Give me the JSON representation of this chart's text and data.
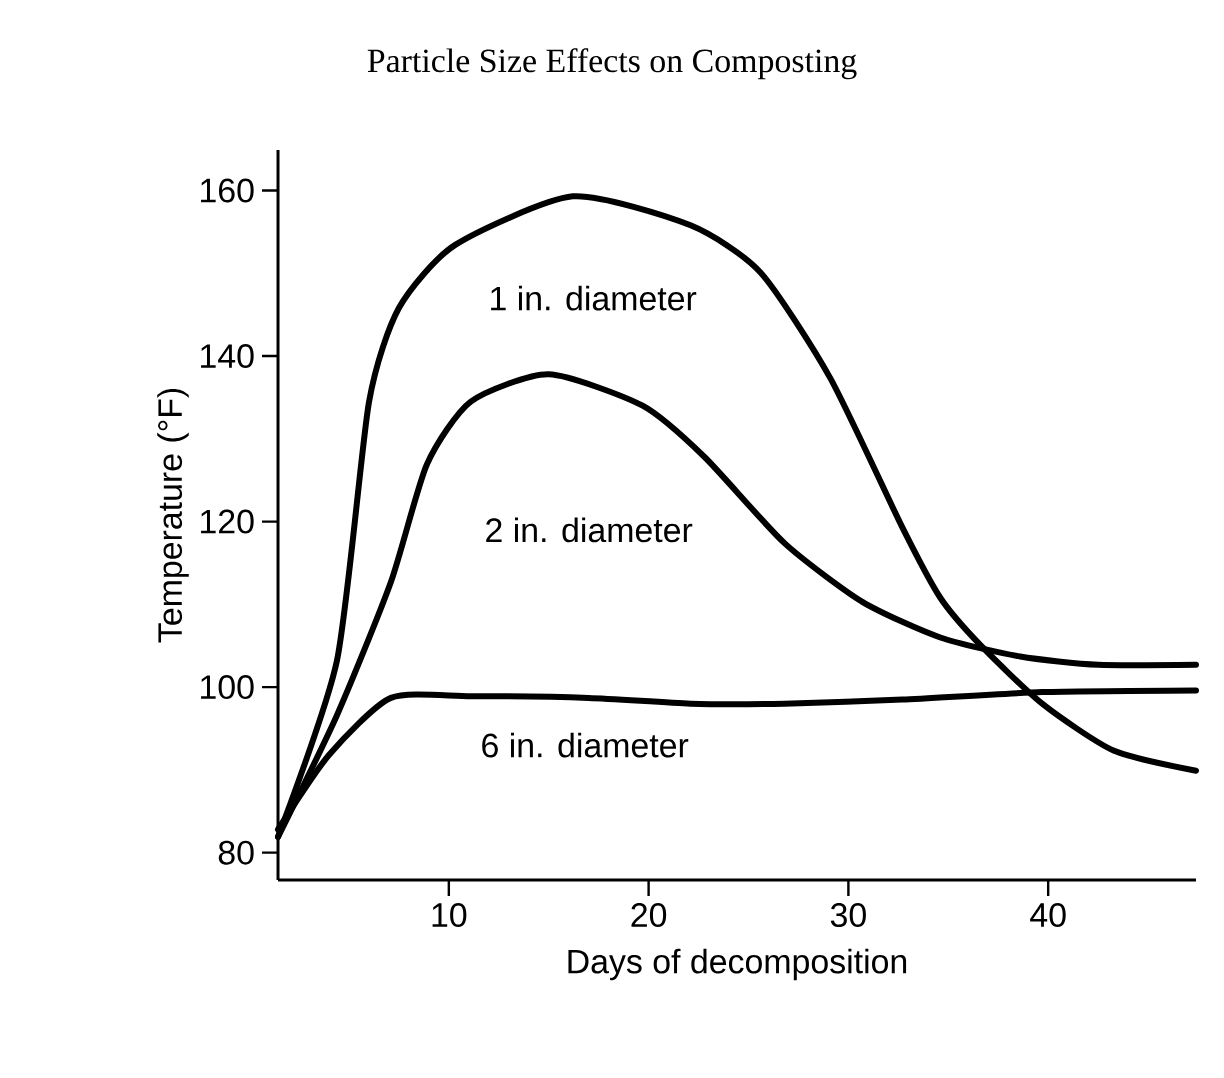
{
  "chart_data": {
    "type": "line",
    "title": "Particle Size Effects on Composting",
    "xlabel": "Days of decomposition",
    "ylabel": "Temperature (°F)",
    "xlim": [
      1.45,
      47.4
    ],
    "ylim": [
      76.7,
      164.9
    ],
    "xticks": [
      10,
      20,
      30,
      40
    ],
    "yticks": [
      80,
      100,
      120,
      140,
      160
    ],
    "grid": false,
    "marker": "none",
    "line_style": "solid",
    "series": [
      {
        "name": "1 in. diameter",
        "color": "#000000",
        "x": [
          1.45,
          4.4,
          6.0,
          7.5,
          10.3,
          16.2,
          22.1,
          25.6,
          29.1,
          32.7,
          34.6,
          36.6,
          39.7,
          43.3,
          47.4
        ],
        "values": [
          81.9,
          103.2,
          134.4,
          145.8,
          153.4,
          159.3,
          155.8,
          150.1,
          137.3,
          119.3,
          110.8,
          105.1,
          98.0,
          92.3,
          89.9
        ]
      },
      {
        "name": "2 in. diameter",
        "color": "#000000",
        "x": [
          1.45,
          4.4,
          7.1,
          8.9,
          11.1,
          15.0,
          19.7,
          22.8,
          26.8,
          30.7,
          34.6,
          38.6,
          42.5,
          47.4
        ],
        "values": [
          81.9,
          96.6,
          112.7,
          126.9,
          134.5,
          137.8,
          134.0,
          127.8,
          117.4,
          110.3,
          106.0,
          103.7,
          102.7,
          102.7
        ]
      },
      {
        "name": "6 in. diameter",
        "color": "#000000",
        "x": [
          1.45,
          4.0,
          7.1,
          11.1,
          17.0,
          22.1,
          26.8,
          32.7,
          39.7,
          47.4
        ],
        "values": [
          82.8,
          91.8,
          98.7,
          98.9,
          98.7,
          98.0,
          98.0,
          98.5,
          99.4,
          99.6
        ]
      }
    ]
  }
}
